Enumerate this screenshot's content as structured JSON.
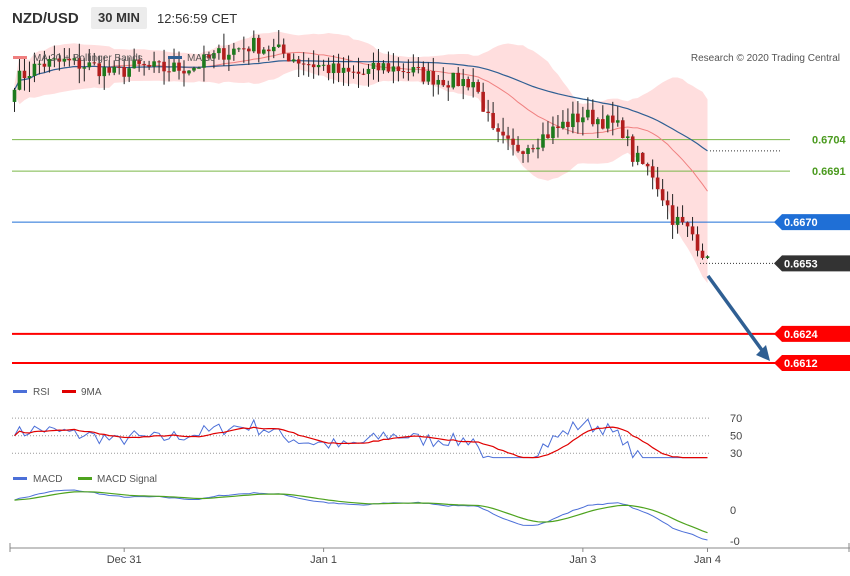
{
  "header": {
    "symbol": "NZD/USD",
    "timeframe": "30 MIN",
    "time": "12:56:59 CET"
  },
  "copyright": "Research © 2020 Trading Central",
  "colors": {
    "candle_up": "#1d7a1d",
    "candle_down": "#b21e1e",
    "bollinger": "#ffd6d6",
    "ma20": "#f08080",
    "ma50": "#2f5f93",
    "support": "#ff0000",
    "resistance_green": "#7ab648",
    "pivot_blue": "#1f6fd6",
    "arrow": "#2f5f93",
    "rsi": "#4c6fd8",
    "rsi_ma": "#e00000",
    "macd": "#4c6fd8",
    "macd_signal": "#4ea31e"
  },
  "chart_data": [
    {
      "type": "line",
      "panel": "price",
      "legend": [
        "MA 20 + Bollinger Bands",
        "MA 50"
      ],
      "x_labels": [
        "Dec 31",
        "Jan 1",
        "Jan 3",
        "Jan 4"
      ],
      "levels": [
        {
          "value": 0.6704,
          "label": "0.6704",
          "kind": "resistance"
        },
        {
          "value": 0.6691,
          "label": "0.6691",
          "kind": "resistance"
        },
        {
          "value": 0.667,
          "label": "0.6670",
          "kind": "pivot"
        },
        {
          "value": 0.6653,
          "label": "0.6653",
          "kind": "last"
        },
        {
          "value": 0.6624,
          "label": "0.6624",
          "kind": "support"
        },
        {
          "value": 0.6612,
          "label": "0.6612",
          "kind": "support"
        }
      ],
      "ylim": [
        0.6605,
        0.6745
      ],
      "forecast_arrow": {
        "from": 0.6652,
        "to": 0.6612
      }
    },
    {
      "type": "line",
      "panel": "rsi",
      "legend": [
        "RSI",
        "9MA"
      ],
      "y_ticks": [
        "70",
        "50",
        "30"
      ],
      "ylim": [
        20,
        85
      ]
    },
    {
      "type": "line",
      "panel": "macd",
      "legend": [
        "MACD",
        "MACD Signal"
      ],
      "y_ticks": [
        "0",
        "-0"
      ]
    }
  ]
}
